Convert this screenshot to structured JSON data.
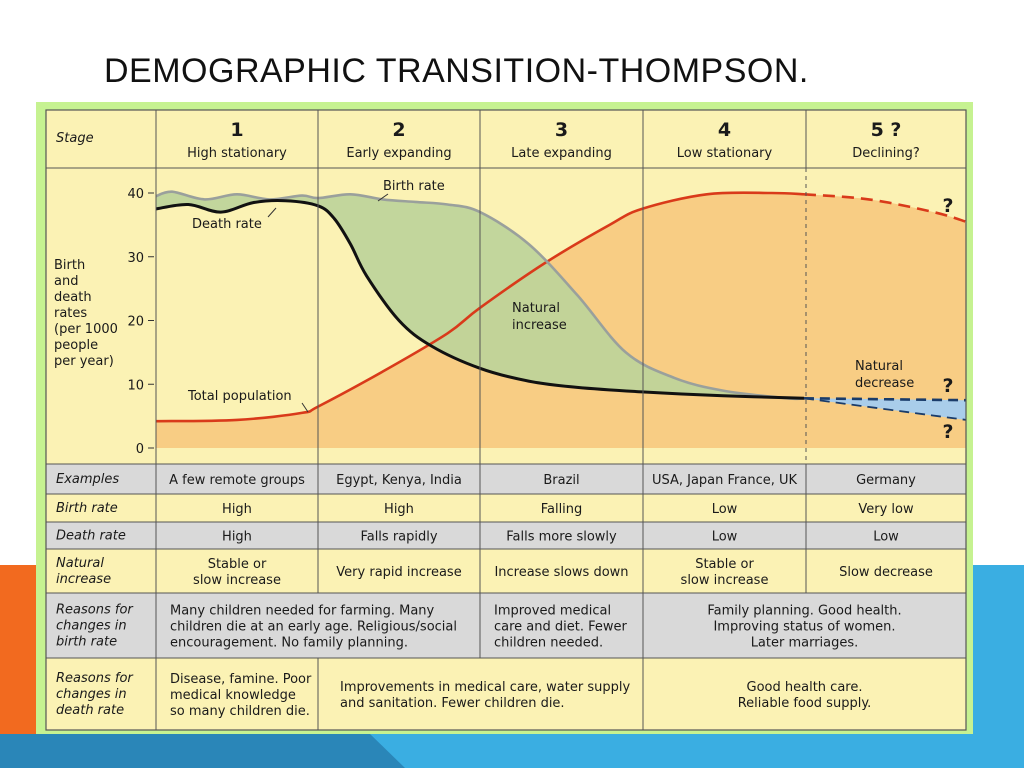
{
  "slide": {
    "title": "DEMOGRAPHIC TRANSITION-THOMPSON."
  },
  "header": {
    "stage_label": "Stage",
    "stages": [
      {
        "number": "1",
        "name": "High stationary"
      },
      {
        "number": "2",
        "name": "Early expanding"
      },
      {
        "number": "3",
        "name": "Late expanding"
      },
      {
        "number": "4",
        "name": "Low stationary"
      },
      {
        "number": "5 ?",
        "name": "Declining?"
      }
    ]
  },
  "chart_data": {
    "type": "line",
    "ylabel": "Birth and death rates (per 1000 people per year)",
    "ylabel_lines": [
      "Birth",
      "and",
      "death",
      "rates",
      "(per 1000",
      "people",
      "per year)"
    ],
    "y_ticks": [
      "40",
      "30",
      "20",
      "10",
      "0"
    ],
    "ylim": [
      0,
      40
    ],
    "x_stage_boundaries": [
      1,
      2,
      3,
      4,
      5,
      6
    ],
    "series": [
      {
        "name": "Birth rate",
        "color": "#9aa09c",
        "x": [
          1.0,
          1.1,
          1.3,
          1.5,
          1.7,
          1.9,
          2.0,
          2.2,
          2.4,
          2.6,
          2.8,
          3.0,
          3.3,
          3.6,
          3.9,
          4.2,
          4.5,
          4.9,
          5.0
        ],
        "y": [
          39.5,
          40.2,
          39.0,
          39.8,
          39.0,
          39.6,
          39.2,
          39.8,
          39.0,
          38.6,
          38.2,
          37.0,
          32.0,
          24.0,
          15.0,
          11.0,
          9.0,
          7.8,
          7.8
        ]
      },
      {
        "name": "Death rate",
        "color": "#111111",
        "x": [
          1.0,
          1.2,
          1.4,
          1.6,
          1.8,
          2.0,
          2.1,
          2.2,
          2.3,
          2.5,
          2.7,
          3.0,
          3.3,
          3.6,
          4.0,
          4.5,
          5.0
        ],
        "y": [
          37.5,
          38.2,
          37.0,
          38.5,
          38.8,
          38.0,
          36.0,
          32.0,
          27.0,
          20.0,
          16.0,
          12.5,
          10.5,
          9.5,
          8.8,
          8.2,
          7.8
        ]
      },
      {
        "name": "Total population",
        "color": "#d93a1a",
        "relative": true,
        "x": [
          1.0,
          1.5,
          1.9,
          2.0,
          2.4,
          2.8,
          3.0,
          3.4,
          3.8,
          4.0,
          4.4,
          4.8,
          5.0
        ],
        "y": [
          4.2,
          4.4,
          5.5,
          6.5,
          12.0,
          18.0,
          22.0,
          29.0,
          35.0,
          37.5,
          39.8,
          40.0,
          39.8
        ]
      },
      {
        "name": "Total population (projected)",
        "color": "#d93a1a",
        "dashed": true,
        "relative": true,
        "x": [
          5.0,
          5.4,
          5.8,
          6.0
        ],
        "y": [
          39.8,
          39.0,
          37.0,
          35.5
        ]
      },
      {
        "name": "Birth/death rate (projected)",
        "color": "#1a3c6a",
        "dashed": true,
        "x": [
          5.0,
          6.0
        ],
        "y": [
          7.8,
          7.5
        ]
      },
      {
        "name": "Birth rate (projected)",
        "color": "#1a3c6a",
        "dashed": true,
        "x": [
          5.0,
          6.0
        ],
        "y": [
          7.8,
          4.4
        ]
      }
    ],
    "labels": {
      "birth_rate": "Birth rate",
      "death_rate": "Death rate",
      "total_population": "Total population",
      "natural_increase": [
        "Natural",
        "increase"
      ],
      "natural_decrease": [
        "Natural",
        "decrease"
      ],
      "question": "?"
    }
  },
  "table": {
    "rows": [
      {
        "header": [
          "Examples"
        ],
        "cells": [
          [
            "A few remote groups"
          ],
          [
            "Egypt, Kenya, India"
          ],
          [
            "Brazil"
          ],
          [
            "USA, Japan France, UK"
          ],
          [
            "Germany"
          ]
        ]
      },
      {
        "header": [
          "Birth rate"
        ],
        "cells": [
          [
            "High"
          ],
          [
            "High"
          ],
          [
            "Falling"
          ],
          [
            "Low"
          ],
          [
            "Very low"
          ]
        ]
      },
      {
        "header": [
          "Death rate"
        ],
        "cells": [
          [
            "High"
          ],
          [
            "Falls rapidly"
          ],
          [
            "Falls more slowly"
          ],
          [
            "Low"
          ],
          [
            "Low"
          ]
        ]
      },
      {
        "header": [
          "Natural",
          "increase"
        ],
        "cells": [
          [
            "Stable or",
            "slow increase"
          ],
          [
            "Very rapid increase"
          ],
          [
            "Increase slows down"
          ],
          [
            "Stable or",
            "slow increase"
          ],
          [
            "Slow decrease"
          ]
        ]
      },
      {
        "header": [
          "Reasons for",
          "changes in",
          "birth rate"
        ],
        "cells": [
          [
            "Many children needed for farming. Many",
            "children die at an early age. Religious/social",
            "encouragement. No family planning."
          ],
          [
            "Improved medical",
            "care and diet. Fewer",
            "children needed."
          ],
          [
            "Family planning. Good health.",
            "Improving status of women.",
            "Later marriages."
          ]
        ]
      },
      {
        "header": [
          "Reasons for",
          "changes in",
          "death rate"
        ],
        "cells": [
          [
            "Disease, famine. Poor",
            "medical knowledge",
            "so many children die."
          ],
          [
            "Improvements in medical care, water supply",
            "and sanitation. Fewer children die."
          ],
          [
            "Good health care.",
            "Reliable food supply."
          ]
        ]
      }
    ]
  },
  "colors": {
    "frame": "#c6f291",
    "cream": "#fbf2b4",
    "peach": "#f8cd84",
    "green_fill": "#bdd49a",
    "blue_fill": "#a9cdea",
    "grey_row": "#d9d9d9",
    "orange_deco": "#f26a1f",
    "blue_deco": "#3aaee2"
  }
}
